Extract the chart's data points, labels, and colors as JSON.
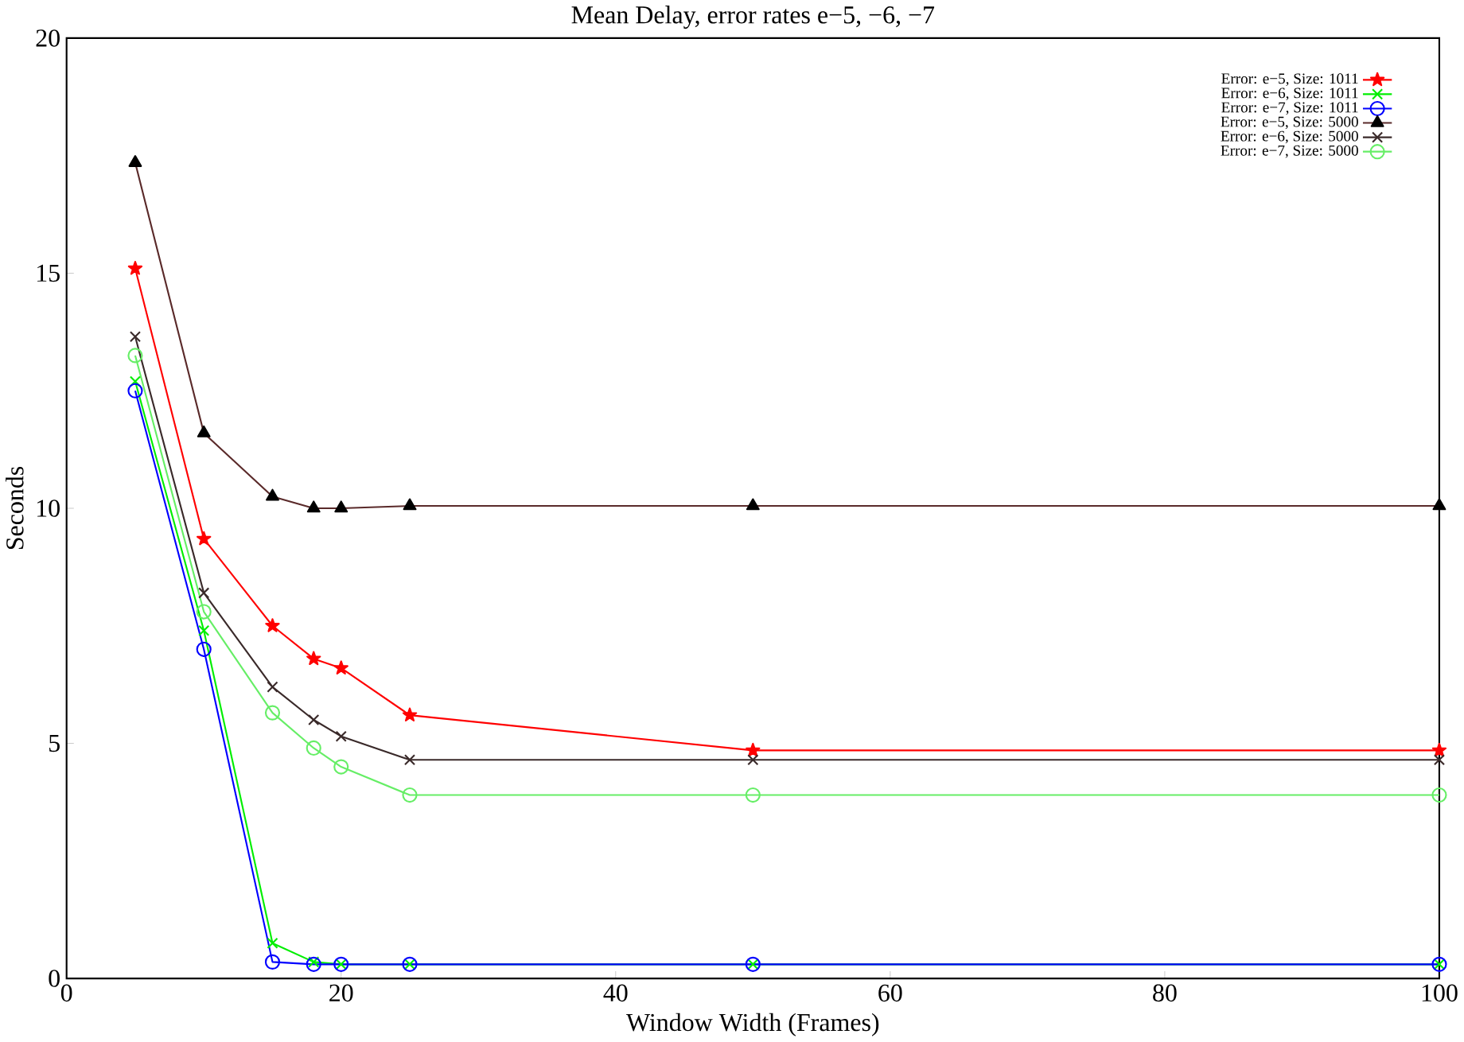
{
  "chart_data": {
    "type": "line",
    "title": "Mean Delay, error rates e−5, −6, −7",
    "xlabel": "Window Width (Frames)",
    "ylabel": "Seconds",
    "x": [
      5,
      10,
      15,
      18,
      20,
      25,
      50,
      100
    ],
    "xlim": [
      0,
      100
    ],
    "xticks": [
      0,
      20,
      40,
      60,
      80,
      100
    ],
    "ylim": [
      0,
      20
    ],
    "yticks": [
      0,
      5,
      10,
      15,
      20
    ],
    "legend": "top right",
    "grid": false,
    "line_style": "solid",
    "series": [
      {
        "name": "Error: e−5, Size: 1011",
        "color": "#ff0000",
        "marker": "star",
        "values": [
          15.1,
          9.35,
          7.5,
          6.8,
          6.6,
          5.6,
          4.85,
          4.85
        ]
      },
      {
        "name": "Error: e−6, Size: 1011",
        "color": "#00ee00",
        "marker": "cross",
        "values": [
          12.7,
          7.4,
          0.75,
          0.35,
          0.3,
          0.3,
          0.3,
          0.3
        ]
      },
      {
        "name": "Error: e−7, Size: 1011",
        "color": "#0000ff",
        "marker": "circle",
        "values": [
          12.5,
          7.0,
          0.35,
          0.3,
          0.3,
          0.3,
          0.3,
          0.3
        ]
      },
      {
        "name": "Error: e−5, Size: 5000",
        "color": "#5a2a2a",
        "marker": "triangle",
        "values": [
          17.35,
          11.6,
          10.25,
          10.0,
          10.0,
          10.05,
          10.05,
          10.05
        ]
      },
      {
        "name": "Error: e−6, Size: 5000",
        "color": "#3a2a2a",
        "marker": "cross",
        "values": [
          13.65,
          8.2,
          6.2,
          5.5,
          5.15,
          4.65,
          4.65,
          4.65
        ]
      },
      {
        "name": "Error: e−7, Size: 5000",
        "color": "#66ee66",
        "marker": "circle",
        "values": [
          13.25,
          7.8,
          5.65,
          4.9,
          4.5,
          3.9,
          3.9,
          3.9
        ]
      }
    ]
  }
}
